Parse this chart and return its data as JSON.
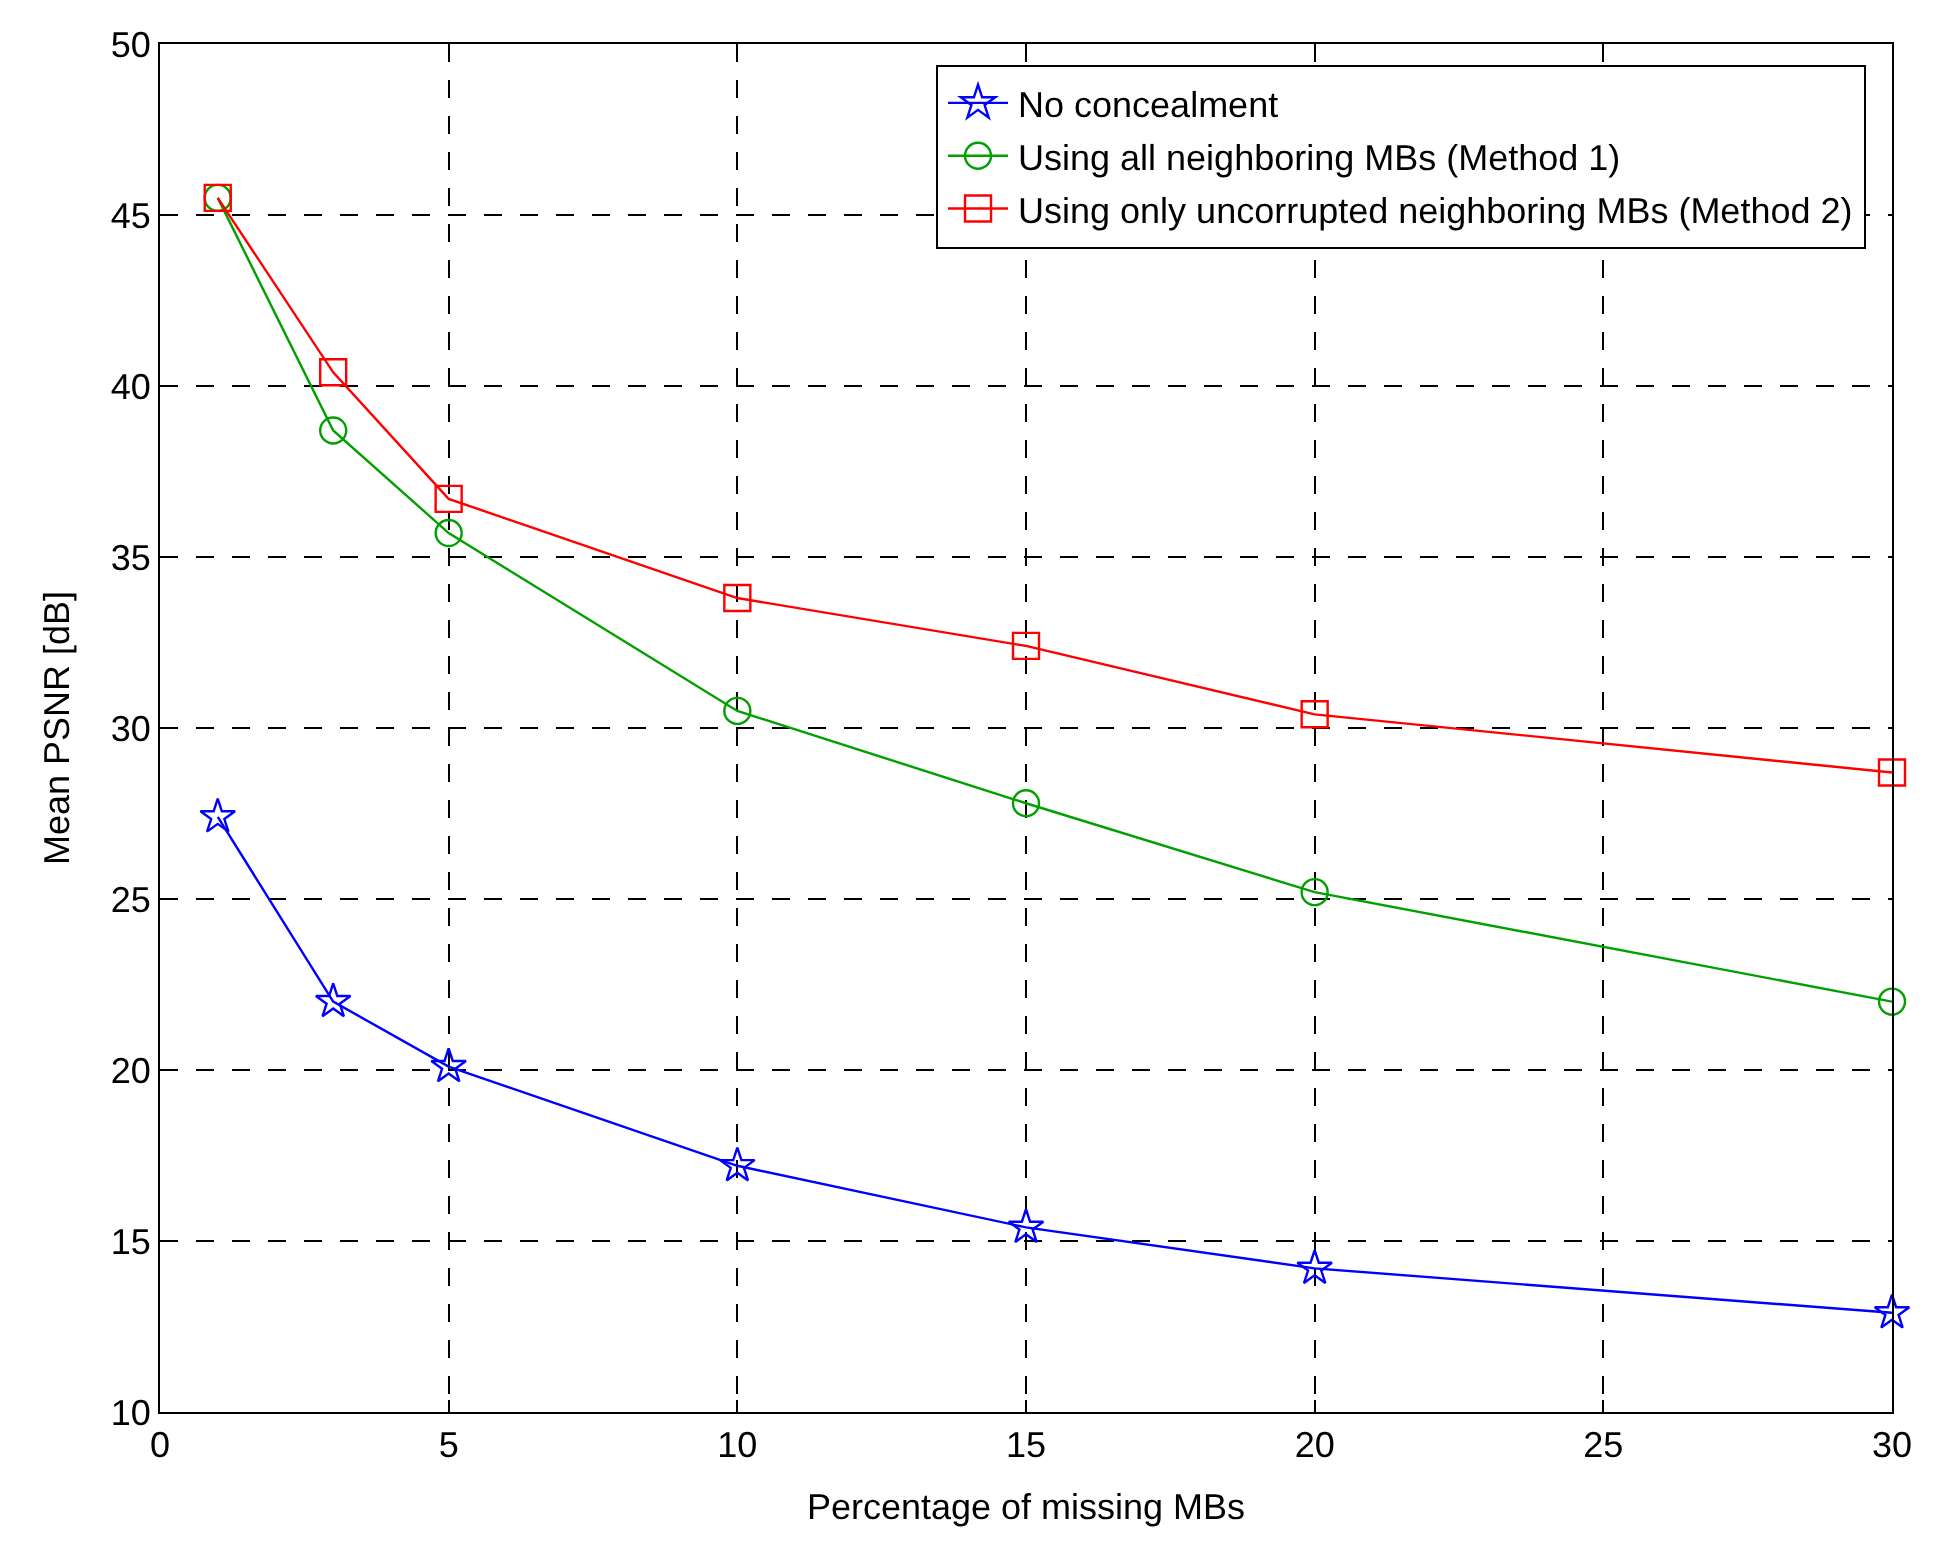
{
  "chart_data": {
    "type": "line",
    "xlabel": "Percentage of missing MBs",
    "ylabel": "Mean PSNR [dB]",
    "x": [
      1,
      3,
      5,
      10,
      15,
      20,
      30
    ],
    "xlim": [
      0,
      30
    ],
    "xticks": [
      0,
      5,
      10,
      15,
      20,
      25,
      30
    ],
    "ylim": [
      10,
      50
    ],
    "yticks": [
      10,
      15,
      20,
      25,
      30,
      35,
      40,
      45,
      50
    ],
    "grid": true,
    "legend": "top right",
    "series": [
      {
        "name": "No concealment",
        "color": "#0000ff",
        "marker": "star",
        "values": [
          27.4,
          22.0,
          20.1,
          17.2,
          15.4,
          14.2,
          12.9
        ]
      },
      {
        "name": "Using all neighboring MBs (Method 1)",
        "color": "#00a000",
        "marker": "circle",
        "values": [
          45.5,
          38.7,
          35.7,
          30.5,
          27.8,
          25.2,
          22.0
        ]
      },
      {
        "name": "Using only uncorrupted neighboring MBs (Method 2)",
        "color": "#ff0000",
        "marker": "square",
        "values": [
          45.5,
          40.4,
          36.7,
          33.8,
          32.4,
          30.4,
          28.7
        ]
      }
    ]
  }
}
